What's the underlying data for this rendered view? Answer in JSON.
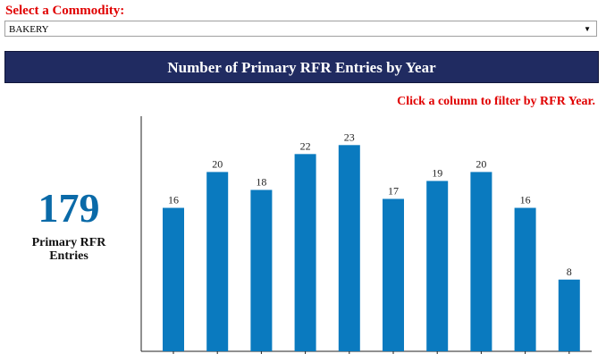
{
  "filter": {
    "label": "Select a Commodity:",
    "selected": "BAKERY"
  },
  "banner": {
    "title": "Number of Primary RFR Entries by Year"
  },
  "instruction": "Click a column to filter by RFR Year.",
  "kpi": {
    "value": 179,
    "label": "Primary RFR Entries"
  },
  "chart_data": {
    "type": "bar",
    "categories": [
      null,
      null,
      null,
      null,
      null,
      null,
      null,
      null,
      null,
      null
    ],
    "values": [
      16,
      20,
      18,
      22,
      23,
      17,
      19,
      20,
      16,
      8
    ],
    "color": "#0a7abf"
  }
}
